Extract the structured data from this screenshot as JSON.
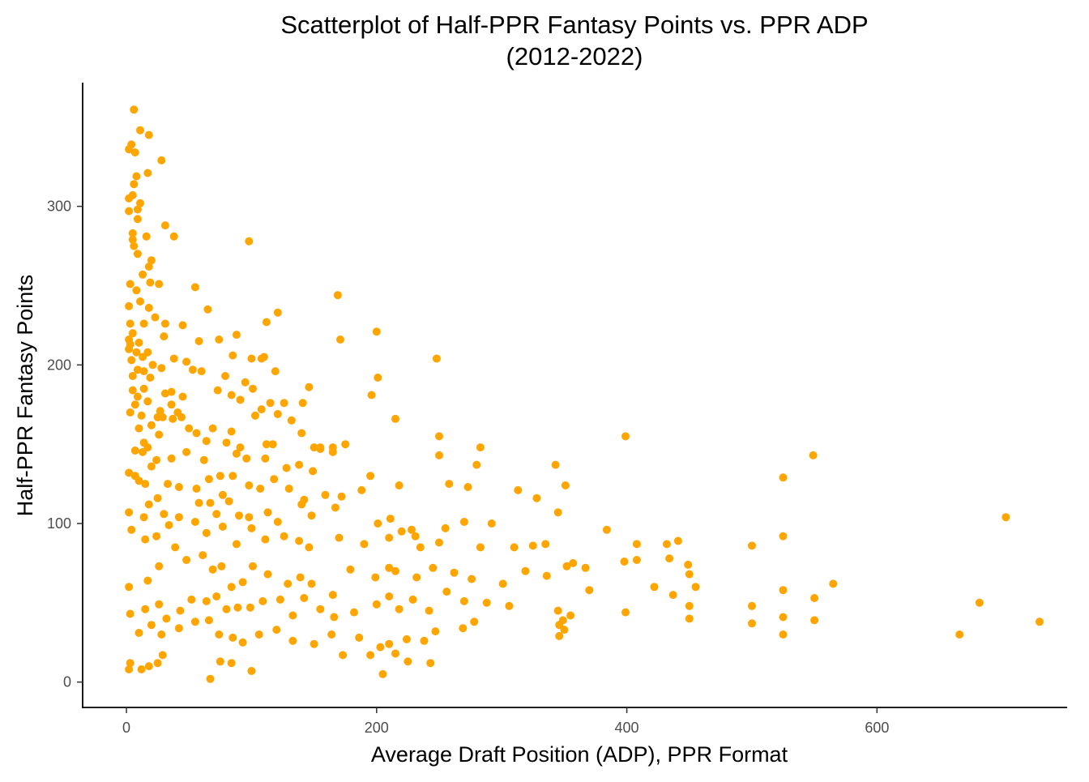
{
  "chart_data": {
    "type": "scatter",
    "title": "Scatterplot of Half-PPR Fantasy Points vs. PPR ADP",
    "subtitle": "(2012-2022)",
    "xlabel": "Average Draft Position (ADP), PPR Format",
    "ylabel": "Half-PPR Fantasy Points",
    "xlim": [
      -35,
      752
    ],
    "ylim": [
      -16,
      378
    ],
    "xticks": [
      0,
      200,
      400,
      600
    ],
    "yticks": [
      0,
      100,
      200,
      300
    ],
    "grid": false,
    "legend": "none",
    "point_color": "#FFA500",
    "points": [
      [
        6,
        361
      ],
      [
        2,
        336
      ],
      [
        4,
        339
      ],
      [
        7,
        334
      ],
      [
        11,
        348
      ],
      [
        18,
        345
      ],
      [
        28,
        329
      ],
      [
        17,
        321
      ],
      [
        8,
        319
      ],
      [
        6,
        314
      ],
      [
        5,
        307
      ],
      [
        2,
        305
      ],
      [
        11,
        302
      ],
      [
        9,
        298
      ],
      [
        2,
        297
      ],
      [
        9,
        292
      ],
      [
        31,
        288
      ],
      [
        5,
        283
      ],
      [
        5,
        279
      ],
      [
        16,
        281
      ],
      [
        38,
        281
      ],
      [
        6,
        275
      ],
      [
        98,
        278
      ],
      [
        9,
        270
      ],
      [
        20,
        266
      ],
      [
        18,
        262
      ],
      [
        13,
        257
      ],
      [
        26,
        251
      ],
      [
        3,
        251
      ],
      [
        8,
        247
      ],
      [
        19,
        252
      ],
      [
        11,
        240
      ],
      [
        2,
        237
      ],
      [
        18,
        236
      ],
      [
        55,
        249
      ],
      [
        65,
        235
      ],
      [
        23,
        230
      ],
      [
        3,
        226
      ],
      [
        14,
        226
      ],
      [
        5,
        220
      ],
      [
        2,
        216
      ],
      [
        10,
        214
      ],
      [
        3,
        213
      ],
      [
        31,
        226
      ],
      [
        45,
        225
      ],
      [
        88,
        219
      ],
      [
        121,
        233
      ],
      [
        112,
        227
      ],
      [
        169,
        244
      ],
      [
        200,
        221
      ],
      [
        2,
        210
      ],
      [
        8,
        208
      ],
      [
        17,
        208
      ],
      [
        4,
        203
      ],
      [
        13,
        205
      ],
      [
        21,
        200
      ],
      [
        9,
        197
      ],
      [
        14,
        196
      ],
      [
        19,
        192
      ],
      [
        5,
        193
      ],
      [
        28,
        198
      ],
      [
        38,
        204
      ],
      [
        48,
        202
      ],
      [
        58,
        215
      ],
      [
        74,
        216
      ],
      [
        30,
        218
      ],
      [
        85,
        206
      ],
      [
        108,
        204
      ],
      [
        100,
        204
      ],
      [
        95,
        189
      ],
      [
        110,
        205
      ],
      [
        119,
        196
      ],
      [
        171,
        216
      ],
      [
        248,
        204
      ],
      [
        5,
        184
      ],
      [
        14,
        185
      ],
      [
        9,
        180
      ],
      [
        7,
        175
      ],
      [
        17,
        177
      ],
      [
        27,
        171
      ],
      [
        31,
        182
      ],
      [
        36,
        183
      ],
      [
        45,
        180
      ],
      [
        36,
        175
      ],
      [
        12,
        168
      ],
      [
        20,
        162
      ],
      [
        29,
        167
      ],
      [
        25,
        167
      ],
      [
        41,
        170
      ],
      [
        53,
        197
      ],
      [
        60,
        196
      ],
      [
        79,
        193
      ],
      [
        73,
        184
      ],
      [
        84,
        181
      ],
      [
        91,
        178
      ],
      [
        101,
        185
      ],
      [
        108,
        172
      ],
      [
        115,
        176
      ],
      [
        103,
        168
      ],
      [
        121,
        169
      ],
      [
        126,
        176
      ],
      [
        146,
        186
      ],
      [
        132,
        165
      ],
      [
        196,
        181
      ],
      [
        201,
        192
      ],
      [
        215,
        166
      ],
      [
        3,
        170
      ],
      [
        10,
        160
      ],
      [
        14,
        151
      ],
      [
        17,
        148
      ],
      [
        26,
        156
      ],
      [
        37,
        166
      ],
      [
        44,
        167
      ],
      [
        50,
        160
      ],
      [
        56,
        157
      ],
      [
        64,
        152
      ],
      [
        69,
        160
      ],
      [
        80,
        151
      ],
      [
        84,
        158
      ],
      [
        91,
        148
      ],
      [
        112,
        150
      ],
      [
        117,
        150
      ],
      [
        140,
        157
      ],
      [
        150,
        148
      ],
      [
        155,
        147
      ],
      [
        165,
        148
      ],
      [
        175,
        150
      ],
      [
        141,
        176
      ],
      [
        155,
        148
      ],
      [
        250,
        155
      ],
      [
        283,
        148
      ],
      [
        399,
        155
      ],
      [
        549,
        143
      ],
      [
        7,
        146
      ],
      [
        13,
        145
      ],
      [
        24,
        140
      ],
      [
        36,
        141
      ],
      [
        48,
        145
      ],
      [
        62,
        140
      ],
      [
        75,
        130
      ],
      [
        88,
        144
      ],
      [
        96,
        141
      ],
      [
        111,
        141
      ],
      [
        128,
        135
      ],
      [
        138,
        137
      ],
      [
        149,
        133
      ],
      [
        165,
        145
      ],
      [
        250,
        143
      ],
      [
        280,
        137
      ],
      [
        343,
        137
      ],
      [
        2,
        132
      ],
      [
        7,
        130
      ],
      [
        10,
        127
      ],
      [
        15,
        125
      ],
      [
        20,
        136
      ],
      [
        33,
        125
      ],
      [
        42,
        123
      ],
      [
        56,
        122
      ],
      [
        66,
        128
      ],
      [
        77,
        118
      ],
      [
        85,
        130
      ],
      [
        98,
        124
      ],
      [
        107,
        122
      ],
      [
        118,
        128
      ],
      [
        130,
        122
      ],
      [
        142,
        115
      ],
      [
        159,
        118
      ],
      [
        172,
        117
      ],
      [
        195,
        130
      ],
      [
        218,
        124
      ],
      [
        258,
        125
      ],
      [
        273,
        123
      ],
      [
        313,
        121
      ],
      [
        328,
        116
      ],
      [
        351,
        124
      ],
      [
        525,
        129
      ],
      [
        2,
        107
      ],
      [
        14,
        104
      ],
      [
        18,
        112
      ],
      [
        25,
        116
      ],
      [
        30,
        106
      ],
      [
        42,
        104
      ],
      [
        58,
        113
      ],
      [
        67,
        113
      ],
      [
        72,
        106
      ],
      [
        82,
        114
      ],
      [
        90,
        105
      ],
      [
        98,
        104
      ],
      [
        113,
        107
      ],
      [
        121,
        101
      ],
      [
        140,
        112
      ],
      [
        148,
        105
      ],
      [
        167,
        110
      ],
      [
        188,
        121
      ],
      [
        201,
        100
      ],
      [
        211,
        103
      ],
      [
        220,
        95
      ],
      [
        231,
        92
      ],
      [
        255,
        97
      ],
      [
        270,
        101
      ],
      [
        292,
        100
      ],
      [
        345,
        107
      ],
      [
        4,
        96
      ],
      [
        15,
        90
      ],
      [
        24,
        92
      ],
      [
        34,
        99
      ],
      [
        55,
        101
      ],
      [
        64,
        94
      ],
      [
        77,
        98
      ],
      [
        88,
        87
      ],
      [
        100,
        97
      ],
      [
        111,
        90
      ],
      [
        126,
        92
      ],
      [
        138,
        89
      ],
      [
        146,
        85
      ],
      [
        170,
        91
      ],
      [
        190,
        87
      ],
      [
        210,
        91
      ],
      [
        228,
        96
      ],
      [
        235,
        85
      ],
      [
        250,
        88
      ],
      [
        283,
        85
      ],
      [
        310,
        85
      ],
      [
        325,
        86
      ],
      [
        335,
        87
      ],
      [
        357,
        75
      ],
      [
        384,
        96
      ],
      [
        408,
        87
      ],
      [
        432,
        87
      ],
      [
        441,
        89
      ],
      [
        500,
        86
      ],
      [
        525,
        92
      ],
      [
        2,
        60
      ],
      [
        17,
        64
      ],
      [
        26,
        73
      ],
      [
        39,
        85
      ],
      [
        48,
        77
      ],
      [
        61,
        80
      ],
      [
        69,
        71
      ],
      [
        76,
        73
      ],
      [
        84,
        60
      ],
      [
        93,
        63
      ],
      [
        101,
        73
      ],
      [
        113,
        68
      ],
      [
        129,
        62
      ],
      [
        139,
        66
      ],
      [
        148,
        62
      ],
      [
        165,
        55
      ],
      [
        179,
        71
      ],
      [
        199,
        66
      ],
      [
        210,
        72
      ],
      [
        215,
        70
      ],
      [
        232,
        66
      ],
      [
        245,
        72
      ],
      [
        262,
        69
      ],
      [
        276,
        65
      ],
      [
        301,
        62
      ],
      [
        319,
        70
      ],
      [
        336,
        67
      ],
      [
        352,
        73
      ],
      [
        367,
        72
      ],
      [
        398,
        76
      ],
      [
        408,
        77
      ],
      [
        434,
        78
      ],
      [
        449,
        74
      ],
      [
        450,
        68
      ],
      [
        525,
        58
      ],
      [
        550,
        53
      ],
      [
        565,
        62
      ],
      [
        3,
        43
      ],
      [
        15,
        46
      ],
      [
        26,
        49
      ],
      [
        32,
        40
      ],
      [
        43,
        45
      ],
      [
        52,
        52
      ],
      [
        64,
        51
      ],
      [
        72,
        54
      ],
      [
        80,
        46
      ],
      [
        89,
        47
      ],
      [
        99,
        47
      ],
      [
        109,
        51
      ],
      [
        123,
        52
      ],
      [
        133,
        42
      ],
      [
        142,
        53
      ],
      [
        155,
        46
      ],
      [
        166,
        41
      ],
      [
        182,
        44
      ],
      [
        200,
        49
      ],
      [
        210,
        54
      ],
      [
        218,
        46
      ],
      [
        229,
        52
      ],
      [
        242,
        45
      ],
      [
        256,
        57
      ],
      [
        270,
        51
      ],
      [
        288,
        50
      ],
      [
        306,
        48
      ],
      [
        345,
        45
      ],
      [
        349,
        39
      ],
      [
        355,
        42
      ],
      [
        370,
        58
      ],
      [
        399,
        44
      ],
      [
        422,
        60
      ],
      [
        437,
        55
      ],
      [
        450,
        48
      ],
      [
        455,
        60
      ],
      [
        500,
        48
      ],
      [
        525,
        41
      ],
      [
        550,
        39
      ],
      [
        10,
        31
      ],
      [
        20,
        36
      ],
      [
        28,
        30
      ],
      [
        42,
        34
      ],
      [
        55,
        38
      ],
      [
        66,
        39
      ],
      [
        74,
        30
      ],
      [
        85,
        28
      ],
      [
        93,
        25
      ],
      [
        106,
        30
      ],
      [
        120,
        33
      ],
      [
        133,
        26
      ],
      [
        150,
        24
      ],
      [
        164,
        30
      ],
      [
        173,
        17
      ],
      [
        186,
        28
      ],
      [
        203,
        22
      ],
      [
        210,
        24
      ],
      [
        224,
        27
      ],
      [
        238,
        26
      ],
      [
        247,
        32
      ],
      [
        269,
        34
      ],
      [
        278,
        38
      ],
      [
        346,
        36
      ],
      [
        350,
        33
      ],
      [
        450,
        40
      ],
      [
        500,
        37
      ],
      [
        525,
        30
      ],
      [
        666,
        30
      ],
      [
        682,
        50
      ],
      [
        703,
        104
      ],
      [
        730,
        38
      ],
      [
        2,
        8
      ],
      [
        3,
        12
      ],
      [
        12,
        8
      ],
      [
        18,
        10
      ],
      [
        25,
        12
      ],
      [
        29,
        17
      ],
      [
        67,
        2
      ],
      [
        75,
        13
      ],
      [
        84,
        12
      ],
      [
        100,
        7
      ],
      [
        195,
        17
      ],
      [
        205,
        5
      ],
      [
        215,
        18
      ],
      [
        225,
        13
      ],
      [
        243,
        12
      ],
      [
        346,
        29
      ]
    ]
  }
}
